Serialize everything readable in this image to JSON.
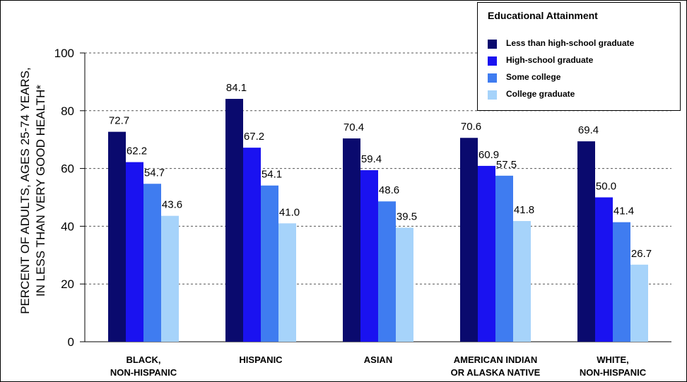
{
  "chart_data": {
    "type": "bar",
    "ylabel": [
      "PERCENT OF ADULTS, AGES 25-74 YEARS,",
      "IN LESS THAN VERY GOOD HEALTH*"
    ],
    "ylim": [
      0,
      100
    ],
    "yticks": [
      "0",
      "20",
      "40",
      "60",
      "80",
      "100"
    ],
    "grid": true,
    "legend_position": "top-right",
    "legend_title": "Educational Attainment",
    "categories": [
      [
        "BLACK,",
        "NON-HISPANIC"
      ],
      [
        "HISPANIC"
      ],
      [
        "ASIAN"
      ],
      [
        "AMERICAN INDIAN",
        "OR ALASKA NATIVE"
      ],
      [
        "WHITE,",
        "NON-HISPANIC"
      ]
    ],
    "series": [
      {
        "name": "Less than high-school graduate",
        "color": "#0a0a6e",
        "values": [
          72.7,
          84.1,
          70.4,
          70.6,
          69.4
        ],
        "labels": [
          "72.7",
          "84.1",
          "70.4",
          "70.6",
          "69.4"
        ]
      },
      {
        "name": "High-school graduate",
        "color": "#1a12f0",
        "values": [
          62.2,
          67.2,
          59.4,
          60.9,
          50.0
        ],
        "labels": [
          "62.2",
          "67.2",
          "59.4",
          "60.9",
          "50.0"
        ]
      },
      {
        "name": "Some college",
        "color": "#3f7cf0",
        "values": [
          54.7,
          54.1,
          48.6,
          57.5,
          41.4
        ],
        "labels": [
          "54.7",
          "54.1",
          "48.6",
          "57.5",
          "41.4"
        ]
      },
      {
        "name": "College graduate",
        "color": "#a6d3fa",
        "values": [
          43.6,
          41.0,
          39.5,
          41.8,
          26.7
        ],
        "labels": [
          "43.6",
          "41.0",
          "39.5",
          "41.8",
          "26.7"
        ]
      }
    ]
  }
}
